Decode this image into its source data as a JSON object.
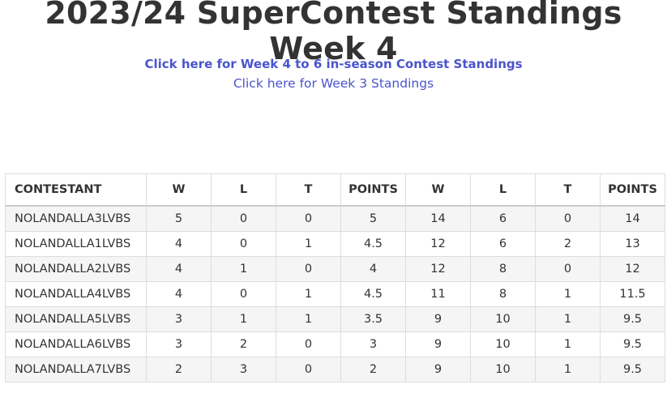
{
  "title": "2023/24 SuperContest Standings Week 4",
  "links": [
    "Click here for Week 4 to 6 in-season Contest Standings",
    "Click here for Week 3 Standings"
  ],
  "table": {
    "headers": [
      "CONTESTANT",
      "W",
      "L",
      "T",
      "POINTS",
      "W",
      "L",
      "T",
      "POINTS"
    ],
    "rows": [
      [
        "NOLANDALLA3LVBS",
        "5",
        "0",
        "0",
        "5",
        "14",
        "6",
        "0",
        "14"
      ],
      [
        "NOLANDALLA1LVBS",
        "4",
        "0",
        "1",
        "4.5",
        "12",
        "6",
        "2",
        "13"
      ],
      [
        "NOLANDALLA2LVBS",
        "4",
        "1",
        "0",
        "4",
        "12",
        "8",
        "0",
        "12"
      ],
      [
        "NOLANDALLA4LVBS",
        "4",
        "0",
        "1",
        "4.5",
        "11",
        "8",
        "1",
        "11.5"
      ],
      [
        "NOLANDALLA5LVBS",
        "3",
        "1",
        "1",
        "3.5",
        "9",
        "10",
        "1",
        "9.5"
      ],
      [
        "NOLANDALLA6LVBS",
        "3",
        "2",
        "0",
        "3",
        "9",
        "10",
        "1",
        "9.5"
      ],
      [
        "NOLANDALLA7LVBS",
        "2",
        "3",
        "0",
        "2",
        "9",
        "10",
        "1",
        "9.5"
      ]
    ]
  },
  "colors": {
    "link": "#4a55cc",
    "text": "#333333"
  }
}
